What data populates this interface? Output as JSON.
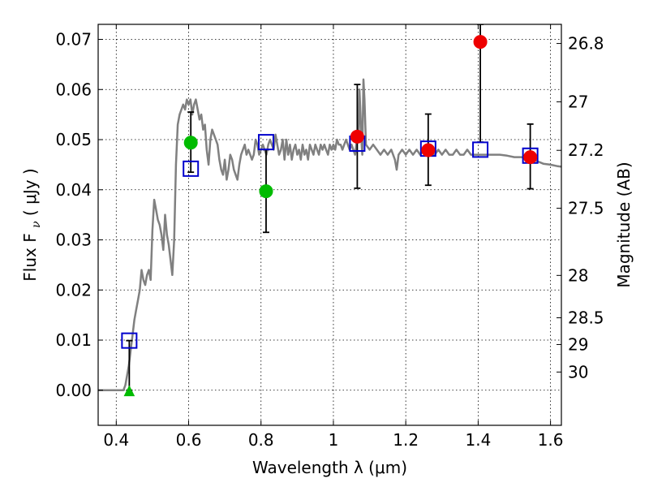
{
  "chart_data": {
    "type": "scatter",
    "xlabel": "Wavelength  λ (μm)",
    "ylabel": "Flux  F",
    "ylabel_sub": "ν",
    "ylabel_unit": "  ( μJy )",
    "y2label": "Magnitude (AB)",
    "xlim": [
      0.35,
      1.63
    ],
    "ylim": [
      -0.007,
      0.073
    ],
    "grid": true,
    "x_ticks": [
      0.4,
      0.6,
      0.8,
      1.0,
      1.2,
      1.4,
      1.6
    ],
    "x_tick_labels": [
      "0.4",
      "0.6",
      "0.8",
      "1",
      "1.2",
      "1.4",
      "1.6"
    ],
    "y_ticks": [
      0.0,
      0.01,
      0.02,
      0.03,
      0.04,
      0.05,
      0.06,
      0.07
    ],
    "y_tick_labels": [
      "0.00",
      "0.01",
      "0.02",
      "0.03",
      "0.04",
      "0.05",
      "0.06",
      "0.07"
    ],
    "y2_ticks": [
      26.8,
      27.0,
      27.2,
      27.5,
      28.0,
      28.5,
      29.0,
      30.0
    ],
    "y2_tick_labels": [
      "26.8",
      "27",
      "27.2",
      "27.5",
      "28",
      "28.5",
      "29",
      "30"
    ],
    "colors": {
      "model": "#808080",
      "green": "#00bb00",
      "red": "#ee0000",
      "blue": "#0000cc",
      "errorbar": "#000000"
    },
    "series": [
      {
        "type": "line",
        "points": [
          [
            0.35,
            0.0
          ],
          [
            0.4,
            0.0
          ],
          [
            0.42,
            0.0
          ],
          [
            0.425,
            0.001
          ],
          [
            0.43,
            0.003
          ],
          [
            0.435,
            0.005
          ],
          [
            0.44,
            0.008
          ],
          [
            0.445,
            0.011
          ],
          [
            0.45,
            0.014
          ],
          [
            0.455,
            0.016
          ],
          [
            0.46,
            0.018
          ],
          [
            0.465,
            0.02
          ],
          [
            0.47,
            0.024
          ],
          [
            0.475,
            0.022
          ],
          [
            0.48,
            0.021
          ],
          [
            0.485,
            0.023
          ],
          [
            0.49,
            0.024
          ],
          [
            0.495,
            0.022
          ],
          [
            0.5,
            0.032
          ],
          [
            0.505,
            0.038
          ],
          [
            0.51,
            0.036
          ],
          [
            0.515,
            0.034
          ],
          [
            0.52,
            0.033
          ],
          [
            0.525,
            0.031
          ],
          [
            0.53,
            0.028
          ],
          [
            0.535,
            0.035
          ],
          [
            0.54,
            0.031
          ],
          [
            0.545,
            0.029
          ],
          [
            0.55,
            0.026
          ],
          [
            0.555,
            0.023
          ],
          [
            0.56,
            0.03
          ],
          [
            0.565,
            0.045
          ],
          [
            0.57,
            0.053
          ],
          [
            0.575,
            0.055
          ],
          [
            0.58,
            0.056
          ],
          [
            0.585,
            0.057
          ],
          [
            0.59,
            0.056
          ],
          [
            0.595,
            0.058
          ],
          [
            0.6,
            0.057
          ],
          [
            0.605,
            0.058
          ],
          [
            0.61,
            0.055
          ],
          [
            0.615,
            0.057
          ],
          [
            0.62,
            0.058
          ],
          [
            0.625,
            0.056
          ],
          [
            0.63,
            0.054
          ],
          [
            0.635,
            0.055
          ],
          [
            0.64,
            0.052
          ],
          [
            0.645,
            0.053
          ],
          [
            0.65,
            0.048
          ],
          [
            0.655,
            0.045
          ],
          [
            0.66,
            0.05
          ],
          [
            0.665,
            0.052
          ],
          [
            0.67,
            0.051
          ],
          [
            0.675,
            0.05
          ],
          [
            0.68,
            0.049
          ],
          [
            0.685,
            0.046
          ],
          [
            0.69,
            0.044
          ],
          [
            0.695,
            0.043
          ],
          [
            0.7,
            0.046
          ],
          [
            0.705,
            0.042
          ],
          [
            0.71,
            0.044
          ],
          [
            0.715,
            0.047
          ],
          [
            0.72,
            0.046
          ],
          [
            0.725,
            0.044
          ],
          [
            0.73,
            0.043
          ],
          [
            0.735,
            0.042
          ],
          [
            0.74,
            0.045
          ],
          [
            0.745,
            0.047
          ],
          [
            0.75,
            0.048
          ],
          [
            0.755,
            0.049
          ],
          [
            0.76,
            0.047
          ],
          [
            0.765,
            0.048
          ],
          [
            0.77,
            0.047
          ],
          [
            0.775,
            0.046
          ],
          [
            0.78,
            0.047
          ],
          [
            0.785,
            0.05
          ],
          [
            0.79,
            0.049
          ],
          [
            0.795,
            0.047
          ],
          [
            0.8,
            0.048
          ],
          [
            0.805,
            0.049
          ],
          [
            0.81,
            0.048
          ],
          [
            0.815,
            0.047
          ],
          [
            0.82,
            0.049
          ],
          [
            0.825,
            0.05
          ],
          [
            0.83,
            0.049
          ],
          [
            0.835,
            0.048
          ],
          [
            0.84,
            0.051
          ],
          [
            0.845,
            0.049
          ],
          [
            0.85,
            0.047
          ],
          [
            0.855,
            0.048
          ],
          [
            0.86,
            0.05
          ],
          [
            0.865,
            0.046
          ],
          [
            0.87,
            0.05
          ],
          [
            0.875,
            0.047
          ],
          [
            0.88,
            0.049
          ],
          [
            0.885,
            0.046
          ],
          [
            0.89,
            0.048
          ],
          [
            0.895,
            0.049
          ],
          [
            0.9,
            0.047
          ],
          [
            0.905,
            0.048
          ],
          [
            0.91,
            0.046
          ],
          [
            0.915,
            0.049
          ],
          [
            0.92,
            0.047
          ],
          [
            0.925,
            0.048
          ],
          [
            0.93,
            0.046
          ],
          [
            0.935,
            0.049
          ],
          [
            0.94,
            0.048
          ],
          [
            0.945,
            0.047
          ],
          [
            0.95,
            0.049
          ],
          [
            0.955,
            0.048
          ],
          [
            0.96,
            0.047
          ],
          [
            0.965,
            0.049
          ],
          [
            0.97,
            0.048
          ],
          [
            0.975,
            0.049
          ],
          [
            0.98,
            0.048
          ],
          [
            0.985,
            0.047
          ],
          [
            0.99,
            0.049
          ],
          [
            0.995,
            0.048
          ],
          [
            1.0,
            0.049
          ],
          [
            1.005,
            0.048
          ],
          [
            1.01,
            0.05
          ],
          [
            1.015,
            0.049
          ],
          [
            1.02,
            0.049
          ],
          [
            1.025,
            0.048
          ],
          [
            1.03,
            0.049
          ],
          [
            1.035,
            0.05
          ],
          [
            1.04,
            0.049
          ],
          [
            1.045,
            0.048
          ],
          [
            1.05,
            0.049
          ],
          [
            1.055,
            0.048
          ],
          [
            1.06,
            0.047
          ],
          [
            1.065,
            0.05
          ],
          [
            1.07,
            0.052
          ],
          [
            1.072,
            0.06
          ],
          [
            1.075,
            0.055
          ],
          [
            1.078,
            0.049
          ],
          [
            1.08,
            0.047
          ],
          [
            1.083,
            0.062
          ],
          [
            1.086,
            0.058
          ],
          [
            1.09,
            0.049
          ],
          [
            1.1,
            0.048
          ],
          [
            1.11,
            0.049
          ],
          [
            1.12,
            0.048
          ],
          [
            1.13,
            0.047
          ],
          [
            1.14,
            0.048
          ],
          [
            1.15,
            0.047
          ],
          [
            1.16,
            0.048
          ],
          [
            1.17,
            0.046
          ],
          [
            1.175,
            0.044
          ],
          [
            1.18,
            0.047
          ],
          [
            1.19,
            0.048
          ],
          [
            1.2,
            0.047
          ],
          [
            1.21,
            0.048
          ],
          [
            1.22,
            0.047
          ],
          [
            1.23,
            0.048
          ],
          [
            1.24,
            0.047
          ],
          [
            1.25,
            0.048
          ],
          [
            1.26,
            0.048
          ],
          [
            1.27,
            0.047
          ],
          [
            1.28,
            0.047
          ],
          [
            1.29,
            0.048
          ],
          [
            1.3,
            0.047
          ],
          [
            1.31,
            0.048
          ],
          [
            1.32,
            0.047
          ],
          [
            1.33,
            0.047
          ],
          [
            1.34,
            0.048
          ],
          [
            1.35,
            0.047
          ],
          [
            1.36,
            0.047
          ],
          [
            1.37,
            0.048
          ],
          [
            1.38,
            0.047
          ],
          [
            1.39,
            0.047
          ],
          [
            1.4,
            0.047
          ],
          [
            1.42,
            0.047
          ],
          [
            1.44,
            0.047
          ],
          [
            1.46,
            0.047
          ],
          [
            1.48,
            0.0468
          ],
          [
            1.5,
            0.0465
          ],
          [
            1.52,
            0.0465
          ],
          [
            1.54,
            0.0462
          ],
          [
            1.56,
            0.0458
          ],
          [
            1.58,
            0.0452
          ],
          [
            1.6,
            0.045
          ],
          [
            1.62,
            0.0447
          ],
          [
            1.63,
            0.0446
          ]
        ]
      },
      {
        "type": "errorbar",
        "points": [
          {
            "x": 0.436,
            "y_low": 0.0,
            "y_high": 0.0099
          },
          {
            "x": 0.606,
            "y_low": 0.0435,
            "y_high": 0.0555
          },
          {
            "x": 0.814,
            "y_low": 0.0315,
            "y_high": 0.048
          },
          {
            "x": 1.066,
            "y_low": 0.0403,
            "y_high": 0.061
          },
          {
            "x": 1.262,
            "y_low": 0.0409,
            "y_high": 0.0551
          },
          {
            "x": 1.406,
            "y_low": 0.0495,
            "y_high": 0.073
          },
          {
            "x": 1.544,
            "y_low": 0.0402,
            "y_high": 0.0531
          }
        ]
      },
      {
        "type": "scatter",
        "marker": "square",
        "points": [
          {
            "x": 0.436,
            "y": 0.0099
          },
          {
            "x": 0.606,
            "y": 0.0442
          },
          {
            "x": 0.814,
            "y": 0.0495
          },
          {
            "x": 1.066,
            "y": 0.0492
          },
          {
            "x": 1.262,
            "y": 0.0482
          },
          {
            "x": 1.406,
            "y": 0.048
          },
          {
            "x": 1.544,
            "y": 0.0468
          }
        ]
      },
      {
        "type": "scatter",
        "marker": "circle",
        "color_key": "green",
        "points": [
          {
            "x": 0.606,
            "y": 0.0494
          },
          {
            "x": 0.814,
            "y": 0.0397
          }
        ]
      },
      {
        "type": "scatter",
        "marker": "circle",
        "color_key": "red",
        "points": [
          {
            "x": 1.066,
            "y": 0.0506
          },
          {
            "x": 1.262,
            "y": 0.0479
          },
          {
            "x": 1.406,
            "y": 0.0695
          },
          {
            "x": 1.544,
            "y": 0.0465
          }
        ]
      },
      {
        "type": "scatter",
        "marker": "triangle",
        "color_key": "green",
        "points": [
          {
            "x": 0.436,
            "y": -0.0003
          }
        ]
      }
    ]
  }
}
